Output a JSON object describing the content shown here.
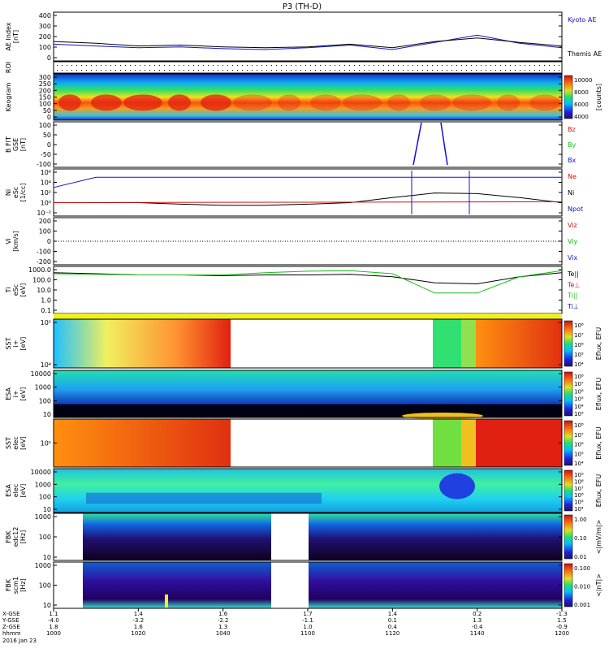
{
  "title": "P3 (TH-D)",
  "date_label": "2016 Jan 23",
  "colors": {
    "black": "#000000",
    "blue": "#1010d0",
    "red": "#d01010",
    "green": "#10c010"
  },
  "x_axis": {
    "row_labels": [
      "X-GSE",
      "Y-GSE",
      "Z-GSE",
      "hhmm"
    ],
    "ticks": [
      {
        "x": "1000",
        "r": [
          "1.1",
          "-4.0",
          "1.8",
          "1000"
        ]
      },
      {
        "x": "1020",
        "r": [
          "1.4",
          "-3.2",
          "1.6",
          "1020"
        ]
      },
      {
        "x": "1040",
        "r": [
          "1.6",
          "-2.2",
          "1.3",
          "1040"
        ]
      },
      {
        "x": "1100",
        "r": [
          "1.7",
          "-1.1",
          "1.0",
          "1100"
        ]
      },
      {
        "x": "1120",
        "r": [
          "1.4",
          "0.1",
          "0.4",
          "1120"
        ]
      },
      {
        "x": "1140",
        "r": [
          "0.2",
          "1.3",
          "-0.4",
          "1140"
        ]
      },
      {
        "x": "1200",
        "r": [
          "-1.3",
          "1.5",
          "-0.9",
          "1200"
        ]
      }
    ]
  },
  "panels": [
    {
      "id": "ae",
      "ylabel": [
        "AE Index",
        "[nT]"
      ],
      "ticks": [
        "400",
        "300",
        "200",
        "100",
        "0"
      ],
      "legend": [
        {
          "text": "Kyoto AE",
          "color": "blue"
        },
        {
          "text": "Themis AE",
          "color": "black"
        }
      ]
    },
    {
      "id": "roi",
      "ylabel": [
        "ROI"
      ],
      "ticks": [],
      "legend": []
    },
    {
      "id": "keogram",
      "ylabel": [
        "Keogram"
      ],
      "ticks": [
        "300",
        "250",
        "200",
        "150",
        "100",
        "50",
        "0"
      ],
      "colorbar": {
        "ticks": [
          "10000",
          "8000",
          "6000",
          "4000"
        ],
        "unit": "[counts]"
      }
    },
    {
      "id": "bfit",
      "ylabel": [
        "B FIT",
        "GSE",
        "[nT]"
      ],
      "ticks": [
        "100",
        "50",
        "0",
        "-50",
        "-100"
      ],
      "legend": [
        {
          "text": "Bz",
          "color": "red"
        },
        {
          "text": "By",
          "color": "green"
        },
        {
          "text": "Bx",
          "color": "blue"
        }
      ]
    },
    {
      "id": "ni",
      "ylabel": [
        "Ni",
        "eSc",
        "[1/cc]"
      ],
      "ticks": [
        "10⁶",
        "10⁴",
        "10²",
        "10⁰",
        "10⁻²"
      ],
      "legend": [
        {
          "text": "Ne",
          "color": "red"
        },
        {
          "text": "Ni",
          "color": "black"
        },
        {
          "text": "Npot",
          "color": "blue"
        }
      ]
    },
    {
      "id": "vi",
      "ylabel": [
        "Vi",
        "[km/s]"
      ],
      "ticks": [
        "200",
        "100",
        "0",
        "-100",
        "-200"
      ],
      "legend": [
        {
          "text": "Viz",
          "color": "red"
        },
        {
          "text": "Viy",
          "color": "green"
        },
        {
          "text": "Vix",
          "color": "blue"
        }
      ]
    },
    {
      "id": "ti",
      "ylabel": [
        "Ti",
        "eSc",
        "[eV]"
      ],
      "ticks": [
        "1000.0",
        "100.0",
        "10.0",
        "1.0",
        "0.1"
      ],
      "legend": [
        {
          "text": "Te||",
          "color": "black"
        },
        {
          "text": "Te⊥",
          "color": "red"
        },
        {
          "text": "Ti||",
          "color": "green"
        },
        {
          "text": "Ti⊥",
          "color": "blue"
        }
      ]
    },
    {
      "id": "sst_i",
      "ylabel": [
        "SST",
        "i+",
        "[eV]"
      ],
      "ticks": [
        "10⁵",
        "10⁴"
      ],
      "colorbar": {
        "ticks": [
          "10⁸",
          "10⁷",
          "10⁶",
          "10⁵",
          "10⁴"
        ],
        "unit": "Eflux, EFU"
      }
    },
    {
      "id": "esa_i",
      "ylabel": [
        "ESA",
        "i+",
        "[eV]"
      ],
      "ticks": [
        "10000",
        "1000",
        "100",
        "10"
      ],
      "colorbar": {
        "ticks": [
          "10⁸",
          "10⁷",
          "10⁶",
          "10⁵",
          "10⁴",
          "10³"
        ],
        "unit": "Eflux, EFU"
      }
    },
    {
      "id": "sst_e",
      "ylabel": [
        "SST",
        "elec",
        "[eV]"
      ],
      "ticks": [
        "10⁵"
      ],
      "colorbar": {
        "ticks": [
          "10⁸",
          "10⁷",
          "10⁶",
          "10⁵",
          "10⁴"
        ],
        "unit": "Eflux, EFU"
      }
    },
    {
      "id": "esa_e",
      "ylabel": [
        "ESA",
        "elec",
        "[eV]"
      ],
      "ticks": [
        "10000",
        "1000",
        "100",
        "10"
      ],
      "colorbar": {
        "ticks": [
          "10⁹",
          "10⁸",
          "10⁷",
          "10⁶",
          "10⁵",
          "10⁴"
        ],
        "unit": "Eflux, EFU"
      }
    },
    {
      "id": "fbk_e",
      "ylabel": [
        "FBK",
        "edc12",
        "[Hz]"
      ],
      "ticks": [
        "1000",
        "100",
        "10"
      ],
      "colorbar": {
        "ticks": [
          "1.00",
          "0.10",
          "0.01"
        ],
        "unit": "<|mV/m|>"
      }
    },
    {
      "id": "fbk_b",
      "ylabel": [
        "FBK",
        "scm1",
        "[Hz]"
      ],
      "ticks": [
        "1000",
        "100",
        "10"
      ],
      "colorbar": {
        "ticks": [
          "0.100",
          "0.010",
          "0.001"
        ],
        "unit": "<|nT|>"
      }
    }
  ],
  "chart_data": {
    "type": "line",
    "title": "P3 (TH-D)",
    "x": [
      "1000",
      "1010",
      "1020",
      "1030",
      "1040",
      "1050",
      "1100",
      "1110",
      "1120",
      "1130",
      "1140",
      "1150",
      "1200"
    ],
    "series": [
      {
        "name": "Kyoto AE",
        "values": [
          100,
          80,
          60,
          70,
          50,
          40,
          60,
          90,
          40,
          120,
          200,
          110,
          60
        ]
      },
      {
        "name": "Themis AE",
        "values": [
          130,
          110,
          80,
          90,
          70,
          60,
          70,
          100,
          60,
          130,
          170,
          120,
          80
        ]
      },
      {
        "name": "Ni",
        "values": [
          1,
          1,
          1,
          0.5,
          0.3,
          0.3,
          0.5,
          1,
          10,
          80,
          60,
          10,
          1
        ]
      },
      {
        "name": "Npot",
        "values": [
          1000,
          100000,
          100000,
          100000,
          100000,
          100000,
          100000,
          100000,
          100000,
          100000,
          100000,
          100000,
          100000
        ]
      },
      {
        "name": "Te||",
        "values": [
          500,
          400,
          300,
          300,
          250,
          300,
          300,
          350,
          200,
          50,
          40,
          200,
          500
        ]
      },
      {
        "name": "Ti||",
        "values": [
          400,
          350,
          300,
          300,
          300,
          500,
          700,
          800,
          400,
          5,
          5,
          200,
          800
        ]
      }
    ],
    "ylim_ae": [
      -50,
      420
    ]
  }
}
